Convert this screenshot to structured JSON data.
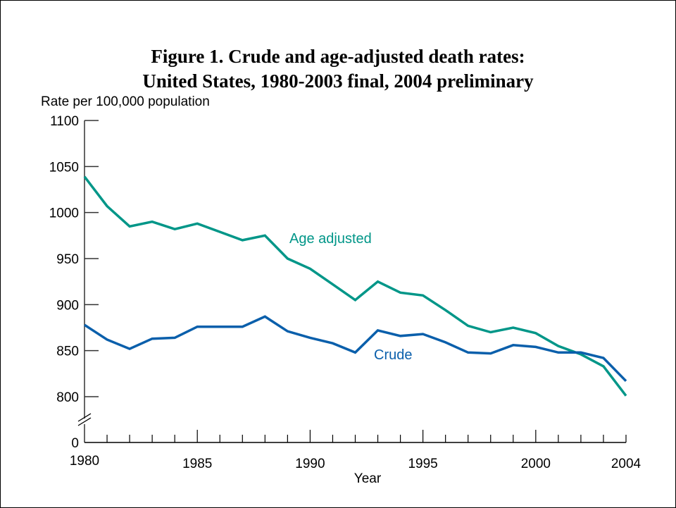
{
  "chart_data": {
    "type": "line",
    "title": "Figure 1. Crude and age-adjusted death rates:",
    "subtitle": "United States, 1980-2003 final, 2004 preliminary",
    "ylabel": "Rate per 100,000 population",
    "xlabel": "Year",
    "ylim": [
      800,
      1100
    ],
    "y_break": true,
    "y_ticks": [
      1100,
      1050,
      1000,
      950,
      900,
      850,
      800
    ],
    "y_zero_label": "0",
    "xlim": [
      1980,
      2004
    ],
    "x_tick_labels": [
      "1980",
      "1985",
      "1990",
      "1995",
      "2000",
      "2004"
    ],
    "x_tick_label_values": [
      1980,
      1985,
      1990,
      1995,
      2000,
      2004
    ],
    "x": [
      1980,
      1981,
      1982,
      1983,
      1984,
      1985,
      1986,
      1987,
      1988,
      1989,
      1990,
      1991,
      1992,
      1993,
      1994,
      1995,
      1996,
      1997,
      1998,
      1999,
      2000,
      2001,
      2002,
      2003,
      2004
    ],
    "series": [
      {
        "name": "Age adjusted",
        "color": "#009688",
        "values": [
          1039,
          1007,
          985,
          990,
          982,
          988,
          979,
          970,
          975,
          950,
          939,
          922,
          905,
          925,
          913,
          910,
          894,
          877,
          870,
          875,
          869,
          855,
          846,
          833,
          801
        ]
      },
      {
        "name": "Crude",
        "color": "#0a5fab",
        "values": [
          878,
          862,
          852,
          863,
          864,
          876,
          876,
          876,
          887,
          871,
          864,
          858,
          848,
          872,
          866,
          868,
          859,
          848,
          847,
          856,
          854,
          848,
          848,
          842,
          817
        ]
      }
    ],
    "legend": "inline-labels",
    "grid": false
  }
}
